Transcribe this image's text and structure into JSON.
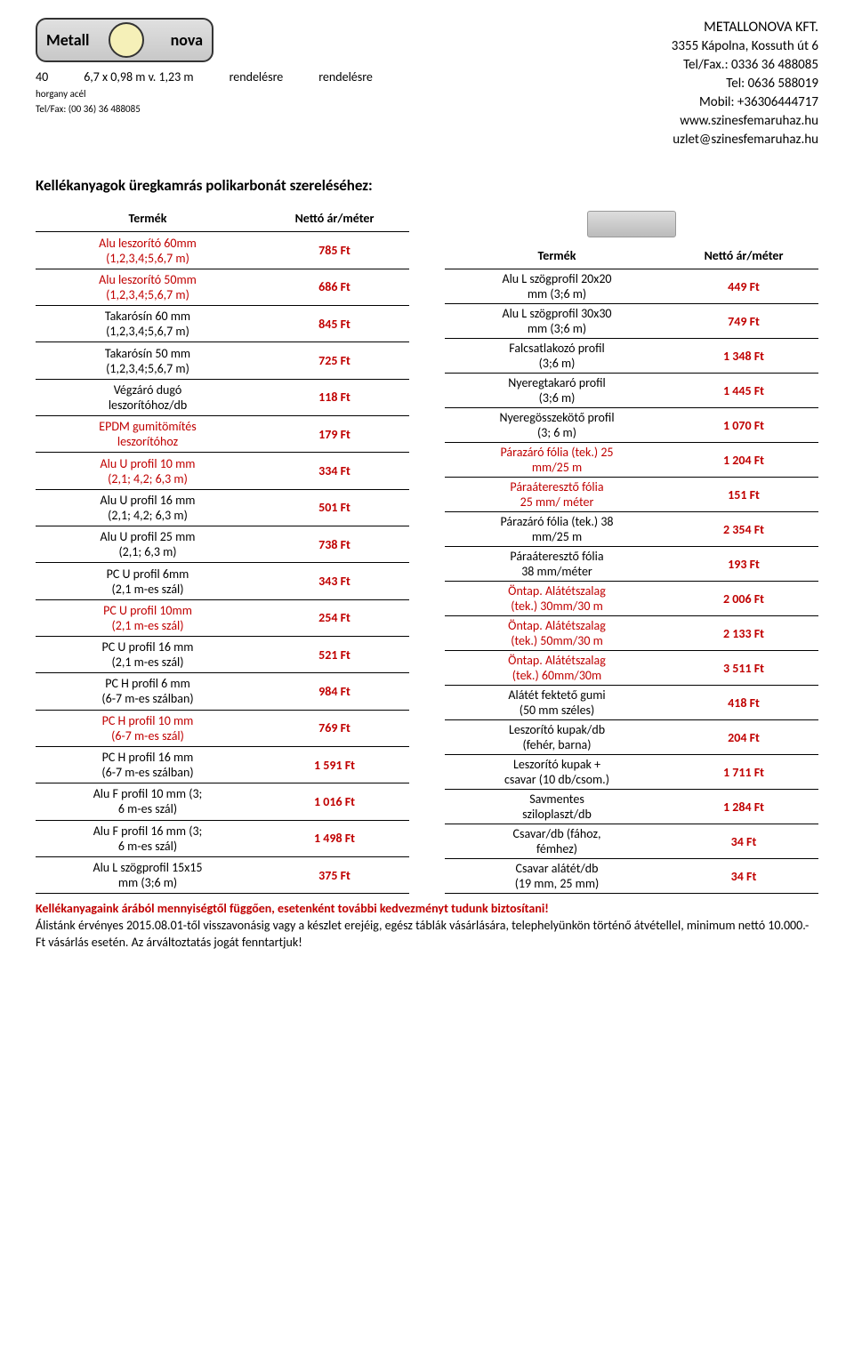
{
  "logo": {
    "left": "Metall",
    "right": "nova",
    "sub1": "horgany",
    "sub2": "acél",
    "telFaxLabel": "Tel/Fax: (00 36) 36 488085"
  },
  "topLine": {
    "c1": "40",
    "c2": "6,7 x 0,98 m v. 1,23 m",
    "c3": "rendelésre",
    "c4": "rendelésre"
  },
  "contact": {
    "company": "METALLONOVA KFT.",
    "addr": "3355 Kápolna, Kossuth út 6",
    "telfax": "Tel/Fax.: 0336 36 488085",
    "tel": "Tel:  0636 588019",
    "mobil": "Mobil: +36306444717",
    "web": "www.szinesfemaruhaz.hu",
    "email": "uzlet@szinesfemaruhaz.hu"
  },
  "sectionTitle": "Kellékanyagok üregkamrás polikarbonát szereléséhez:",
  "headers": {
    "product": "Termék",
    "price": "Nettó ár/méter"
  },
  "leftTable": [
    {
      "l1": "Alu leszorító 60mm",
      "l2": "(1,2,3,4;5,6,7 m)",
      "price": "785 Ft",
      "red": true
    },
    {
      "l1": "Alu leszorító 50mm",
      "l2": "(1,2,3,4;5,6,7 m)",
      "price": "686 Ft",
      "red": true
    },
    {
      "l1": "Takarósín 60 mm",
      "l2": "(1,2,3,4;5,6,7 m)",
      "price": "845 Ft",
      "red": false
    },
    {
      "l1": "Takarósín 50 mm",
      "l2": "(1,2,3,4;5,6,7 m)",
      "price": "725 Ft",
      "red": false
    },
    {
      "l1": "Végzáró dugó",
      "l2": "leszorítóhoz/db",
      "price": "118 Ft",
      "red": false
    },
    {
      "l1": "EPDM gumitömítés",
      "l2": "leszorítóhoz",
      "price": "179 Ft",
      "red": true
    },
    {
      "l1": "Alu U profil 10 mm",
      "l2": "(2,1; 4,2; 6,3 m)",
      "price": "334 Ft",
      "red": true
    },
    {
      "l1": "Alu U profil 16 mm",
      "l2": "(2,1; 4,2; 6,3 m)",
      "price": "501 Ft",
      "red": false
    },
    {
      "l1": "Alu U profil 25 mm",
      "l2": "(2,1; 6,3 m)",
      "price": "738 Ft",
      "red": false
    },
    {
      "l1": "PC U profil 6mm",
      "l2": "(2,1 m-es szál)",
      "price": "343 Ft",
      "red": false
    },
    {
      "l1": "PC U profil 10mm",
      "l2": "(2,1 m-es szál)",
      "price": "254 Ft",
      "red": true
    },
    {
      "l1": "PC U profil 16 mm",
      "l2": "(2,1 m-es szál)",
      "price": "521 Ft",
      "red": false
    },
    {
      "l1": "PC H profil 6 mm",
      "l2": "(6-7 m-es szálban)",
      "price": "984 Ft",
      "red": false
    },
    {
      "l1": "PC H profil 10 mm",
      "l2": "(6-7 m-es szál)",
      "price": "769 Ft",
      "red": true
    },
    {
      "l1": "PC H profil 16 mm",
      "l2": "(6-7 m-es szálban)",
      "price": "1 591 Ft",
      "red": false
    },
    {
      "l1": "Alu F profil 10 mm  (3;",
      "l2": "6 m-es szál)",
      "price": "1 016 Ft",
      "red": false
    },
    {
      "l1": "Alu F profil 16 mm  (3;",
      "l2": "6 m-es szál)",
      "price": "1 498 Ft",
      "red": false
    },
    {
      "l1": "Alu L szögprofil 15x15",
      "l2": "mm (3;6 m)",
      "price": "375 Ft",
      "red": false
    }
  ],
  "rightTable": [
    {
      "l1": "Alu L szögprofil 20x20",
      "l2": "mm (3;6 m)",
      "price": "449 Ft",
      "red": false
    },
    {
      "l1": "Alu L szögprofil 30x30",
      "l2": "mm (3;6 m)",
      "price": "749 Ft",
      "red": false
    },
    {
      "l1": "Falcsatlakozó profil",
      "l2": "(3;6 m)",
      "price": "1 348 Ft",
      "red": false
    },
    {
      "l1": "Nyeregtakaró profil",
      "l2": "(3;6 m)",
      "price": "1 445 Ft",
      "red": false
    },
    {
      "l1": "Nyeregösszekötő profil",
      "l2": "(3; 6 m)",
      "price": "1 070 Ft",
      "red": false
    },
    {
      "l1": "Párazáró fólia (tek.)  25",
      "l2": "mm/25 m",
      "price": "1 204 Ft",
      "red": true
    },
    {
      "l1": "Páraáteresztő fólia",
      "l2": "25 mm/ méter",
      "price": "151 Ft",
      "red": true
    },
    {
      "l1": "Párazáró fólia (tek.)  38",
      "l2": "mm/25 m",
      "price": "2 354 Ft",
      "red": false
    },
    {
      "l1": "Páraáteresztő fólia",
      "l2": "38 mm/méter",
      "price": "193 Ft",
      "red": false
    },
    {
      "l1": "Öntap. Alátétszalag",
      "l2": "(tek.) 30mm/30 m",
      "price": "2 006 Ft",
      "red": true
    },
    {
      "l1": "Öntap. Alátétszalag",
      "l2": "(tek.) 50mm/30 m",
      "price": "2 133 Ft",
      "red": true
    },
    {
      "l1": "Öntap. Alátétszalag",
      "l2": "(tek.) 60mm/30m",
      "price": "3 511 Ft",
      "red": true
    },
    {
      "l1": "Alátét fektető gumi",
      "l2": "(50 mm széles)",
      "price": "418 Ft",
      "red": false
    },
    {
      "l1": "Leszorító kupak/db",
      "l2": "(fehér, barna)",
      "price": "204 Ft",
      "red": false
    },
    {
      "l1": "Leszorító kupak +",
      "l2": "csavar (10 db/csom.)",
      "price": "1 711 Ft",
      "red": false
    },
    {
      "l1": "Savmentes",
      "l2": "sziloplaszt/db",
      "price": "1 284 Ft",
      "red": false
    },
    {
      "l1": "Csavar/db (fához,",
      "l2": "fémhez)",
      "price": "34 Ft",
      "red": false
    },
    {
      "l1": "Csavar alátét/db",
      "l2": "(19 mm, 25 mm)",
      "price": "34 Ft",
      "red": false
    }
  ],
  "footer": {
    "discount": "Kellékanyagaink árából mennyiségtől függően, esetenként további kedvezményt tudunk biztosítani!",
    "validity": "Álistánk érvényes 2015.08.01-től visszavonásig vagy a készlet erejéig, egész táblák vásárlására, telephelyünkön történő átvétellel, minimum nettó 10.000.-Ft vásárlás esetén. Az árváltoztatás jogát fenntartjuk!"
  }
}
